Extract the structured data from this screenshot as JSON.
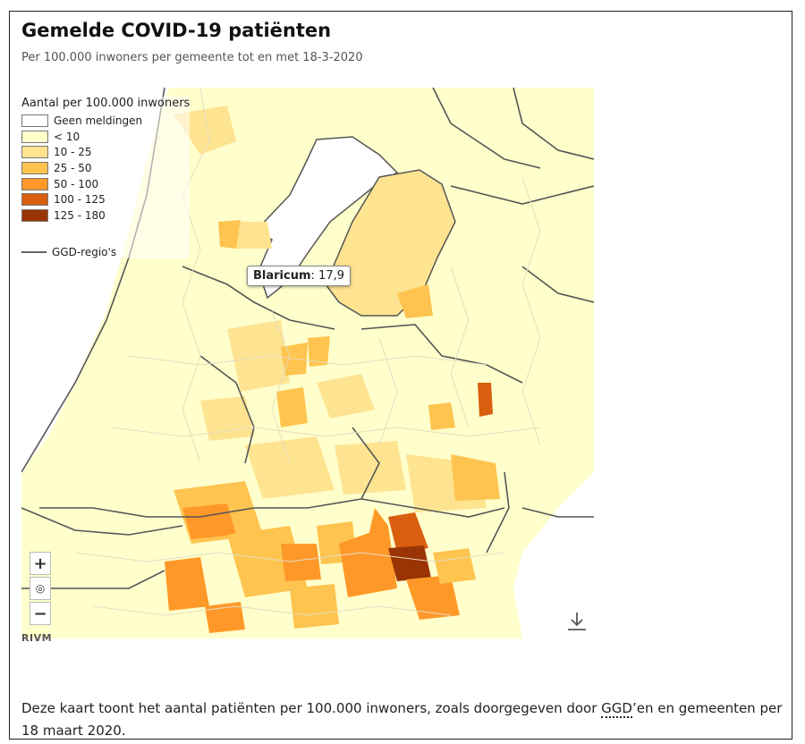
{
  "header": {
    "title": "Gemelde COVID-19 patiënten",
    "subtitle": "Per 100.000 inwoners per gemeente tot en met 18-3-2020"
  },
  "legend": {
    "title": "Aantal per 100.000 inwoners",
    "items": [
      {
        "label": "Geen meldingen",
        "color": "#ffffff"
      },
      {
        "label": "< 10",
        "color": "#ffffcc"
      },
      {
        "label": "10 - 25",
        "color": "#fee391"
      },
      {
        "label": "25 - 50",
        "color": "#fec44f"
      },
      {
        "label": "50 - 100",
        "color": "#fe9929"
      },
      {
        "label": "100 - 125",
        "color": "#d95f0e"
      },
      {
        "label": "125 - 180",
        "color": "#993404"
      }
    ],
    "ggd_label": "GGD-regio's"
  },
  "tooltip": {
    "name": "Blaricum",
    "separator": ":",
    "value": "17,9"
  },
  "map_controls": {
    "zoom_in": "+",
    "reset": "◎",
    "zoom_out": "−",
    "attribution": "RIVM"
  },
  "footer": {
    "text_before": "Deze kaart toont het aantal patiënten per 100.000 inwoners, zoals doorgegeven door ",
    "abbr": "GGD",
    "text_after": "’en en gemeenten per 18 maart 2020."
  }
}
